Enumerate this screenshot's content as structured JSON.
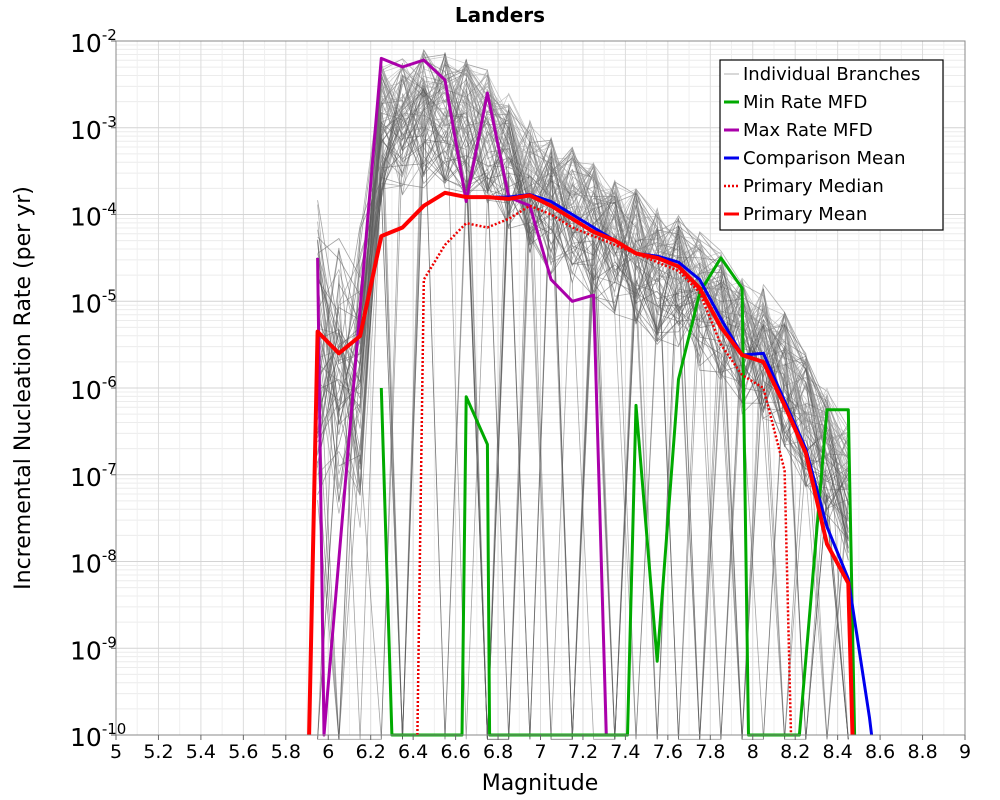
{
  "chart_data": {
    "type": "line",
    "title": "Landers",
    "xlabel": "Magnitude",
    "ylabel": "Incremental Nucleation Rate (per yr)",
    "xlim": [
      5,
      9
    ],
    "ylim_log10": [
      -10,
      -2
    ],
    "x_ticks": [
      "5",
      "5.2",
      "5.4",
      "5.6",
      "5.8",
      "6",
      "6.2",
      "6.4",
      "6.6",
      "6.8",
      "7",
      "7.2",
      "7.4",
      "7.6",
      "7.8",
      "8",
      "8.2",
      "8.4",
      "8.6",
      "8.8",
      "9"
    ],
    "y_ticks": [
      {
        "base": "10",
        "exp": "-10",
        "log": -10
      },
      {
        "base": "10",
        "exp": "-9",
        "log": -9
      },
      {
        "base": "10",
        "exp": "-8",
        "log": -8
      },
      {
        "base": "10",
        "exp": "-7",
        "log": -7
      },
      {
        "base": "10",
        "exp": "-6",
        "log": -6
      },
      {
        "base": "10",
        "exp": "-5",
        "log": -5
      },
      {
        "base": "10",
        "exp": "-4",
        "log": -4
      },
      {
        "base": "10",
        "exp": "-3",
        "log": -3
      },
      {
        "base": "10",
        "exp": "-2",
        "log": -2
      }
    ],
    "grid": true,
    "legend_position": "top-right",
    "legend": [
      {
        "label": "Individual Branches",
        "color": "#b0b0b0",
        "style": "solid"
      },
      {
        "label": "Min Rate MFD",
        "color": "#00aa00",
        "style": "solid"
      },
      {
        "label": "Max Rate MFD",
        "color": "#aa00aa",
        "style": "solid"
      },
      {
        "label": "Comparison Mean",
        "color": "#0000ee",
        "style": "solid"
      },
      {
        "label": " Primary Median",
        "color": "#ee0000",
        "style": "dotted"
      },
      {
        "label": "Primary Mean",
        "color": "#ff0000",
        "style": "solid"
      }
    ],
    "branch_envelope": {
      "name": "Individual Branches",
      "color": "#555555",
      "x": [
        5.95,
        6.05,
        6.15,
        6.25,
        6.35,
        6.45,
        6.55,
        6.65,
        6.75,
        6.85,
        6.95,
        7.05,
        7.15,
        7.25,
        7.35,
        7.45,
        7.55,
        7.65,
        7.75,
        7.85,
        7.95,
        8.05,
        8.15,
        8.25,
        8.35,
        8.45
      ],
      "upper_log10": [
        -3.6,
        -3.7,
        -3.7,
        -2.25,
        -2.2,
        -2.1,
        -2.1,
        -2.2,
        -2.3,
        -2.6,
        -2.9,
        -3.1,
        -3.2,
        -3.4,
        -3.6,
        -3.7,
        -3.9,
        -4.0,
        -4.2,
        -4.4,
        -4.7,
        -4.8,
        -5.1,
        -5.6,
        -6.0,
        -6.4
      ],
      "count": 60
    },
    "series": [
      {
        "name": "Max Rate MFD",
        "color": "#aa00aa",
        "x": [
          5.95,
          5.98,
          6.25,
          6.35,
          6.45,
          6.55,
          6.65,
          6.75,
          6.85,
          6.95,
          7.05,
          7.15,
          7.25,
          7.31
        ],
        "log10": [
          -4.5,
          -10,
          -2.2,
          -2.3,
          -2.22,
          -2.45,
          -3.85,
          -2.6,
          -3.8,
          -3.9,
          -4.75,
          -5.0,
          -4.93,
          -10
        ]
      },
      {
        "name": "Min Rate MFD",
        "color": "#00aa00",
        "x": [
          6.25,
          6.3,
          6.63,
          6.65,
          6.75,
          6.76,
          7.41,
          7.45,
          7.55,
          7.65,
          7.75,
          7.85,
          7.95,
          7.98,
          8.22,
          8.35,
          8.45,
          8.48
        ],
        "log10": [
          -6.0,
          -10,
          -10,
          -6.1,
          -6.65,
          -10,
          -10,
          -6.2,
          -9.15,
          -5.9,
          -4.9,
          -4.5,
          -4.85,
          -10,
          -10,
          -6.25,
          -6.25,
          -10
        ]
      },
      {
        "name": "Comparison Mean",
        "color": "#0000ee",
        "x": [
          5.91,
          5.95,
          6.05,
          6.15,
          6.25,
          6.35,
          6.45,
          6.55,
          6.65,
          6.75,
          6.85,
          6.95,
          7.05,
          7.15,
          7.25,
          7.35,
          7.45,
          7.55,
          7.65,
          7.75,
          7.85,
          7.95,
          8.05,
          8.15,
          8.25,
          8.35,
          8.45,
          8.55,
          8.56
        ],
        "log10": [
          -10,
          -5.35,
          -5.6,
          -5.4,
          -4.25,
          -4.15,
          -3.9,
          -3.75,
          -3.8,
          -3.8,
          -3.8,
          -3.77,
          -3.85,
          -4.0,
          -4.15,
          -4.3,
          -4.45,
          -4.48,
          -4.55,
          -4.75,
          -5.2,
          -5.62,
          -5.6,
          -6.15,
          -6.7,
          -7.6,
          -8.2,
          -9.8,
          -10
        ]
      },
      {
        "name": "Primary Median",
        "color": "#ee0000",
        "x": [
          6.42,
          6.45,
          6.55,
          6.65,
          6.75,
          6.85,
          6.95,
          7.05,
          7.15,
          7.25,
          7.35,
          7.45,
          7.55,
          7.65,
          7.75,
          7.85,
          7.95,
          8.05,
          8.15,
          8.18
        ],
        "log10": [
          -10,
          -4.75,
          -4.35,
          -4.1,
          -4.15,
          -4.05,
          -3.9,
          -4.0,
          -4.15,
          -4.25,
          -4.35,
          -4.45,
          -4.55,
          -4.65,
          -4.9,
          -5.5,
          -5.85,
          -6.0,
          -6.95,
          -10
        ]
      },
      {
        "name": "Primary Mean",
        "color": "#ff0000",
        "x": [
          5.91,
          5.95,
          6.05,
          6.15,
          6.25,
          6.35,
          6.45,
          6.55,
          6.65,
          6.75,
          6.85,
          6.95,
          7.05,
          7.15,
          7.25,
          7.35,
          7.45,
          7.55,
          7.65,
          7.75,
          7.85,
          7.95,
          8.05,
          8.15,
          8.25,
          8.35,
          8.45,
          8.47
        ],
        "log10": [
          -10,
          -5.35,
          -5.6,
          -5.4,
          -4.25,
          -4.15,
          -3.9,
          -3.75,
          -3.8,
          -3.8,
          -3.82,
          -3.78,
          -3.9,
          -4.05,
          -4.2,
          -4.3,
          -4.45,
          -4.5,
          -4.6,
          -4.85,
          -5.3,
          -5.62,
          -5.7,
          -6.2,
          -6.75,
          -7.8,
          -8.25,
          -10
        ]
      }
    ]
  }
}
